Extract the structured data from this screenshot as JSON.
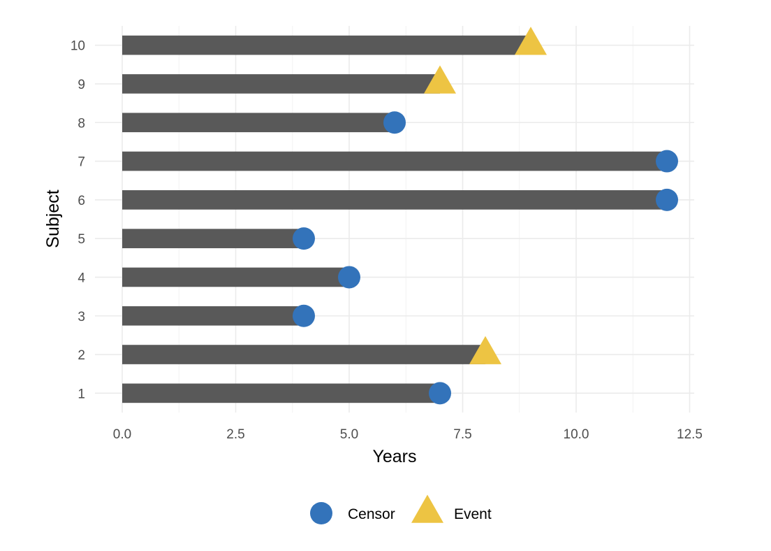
{
  "chart_data": {
    "type": "bar",
    "orientation": "horizontal",
    "title": "",
    "xlabel": "Years",
    "ylabel": "Subject",
    "xlim": [
      -0.6,
      12.6
    ],
    "x_ticks": [
      0,
      2.5,
      5,
      7.5,
      10,
      12.5
    ],
    "x_tick_labels": [
      "0.0",
      "2.5",
      "5.0",
      "7.5",
      "10.0",
      "12.5"
    ],
    "grid": true,
    "bar_color": "#595959",
    "subjects": [
      "1",
      "2",
      "3",
      "4",
      "5",
      "6",
      "7",
      "8",
      "9",
      "10"
    ],
    "values": [
      7,
      8,
      4,
      5,
      4,
      12,
      12,
      6,
      7,
      9
    ],
    "status": [
      "Censor",
      "Event",
      "Censor",
      "Censor",
      "Censor",
      "Censor",
      "Censor",
      "Censor",
      "Event",
      "Event"
    ],
    "legend": {
      "placement": "bottom",
      "entries": [
        {
          "label": "Censor",
          "shape": "circle",
          "color": "#3373BA"
        },
        {
          "label": "Event",
          "shape": "triangle",
          "color": "#EDC443"
        }
      ]
    }
  }
}
